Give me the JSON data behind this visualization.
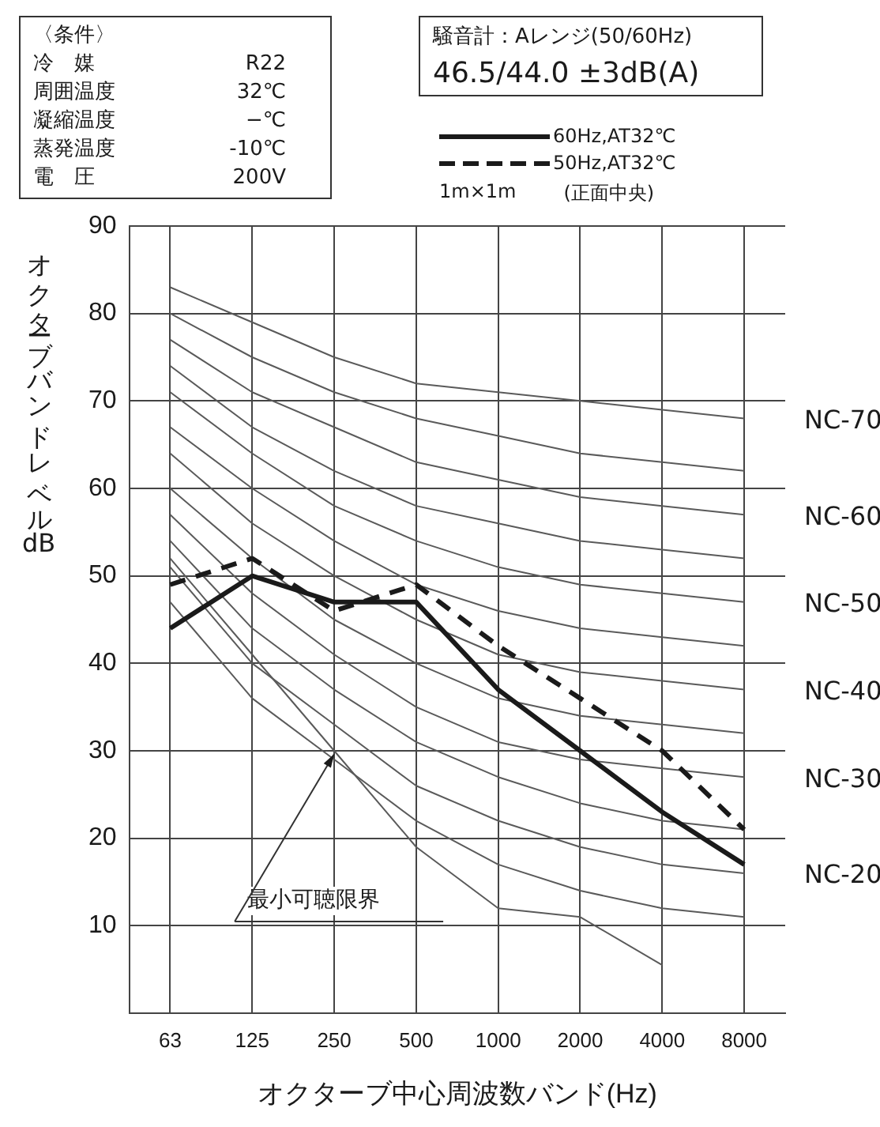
{
  "chart_data": {
    "type": "line",
    "xlabel": "オクターブ中心周波数バンド(Hz)",
    "ylabel": "オクターブバンドレベル dB",
    "categories": [
      "63",
      "125",
      "250",
      "500",
      "1000",
      "2000",
      "4000",
      "8000"
    ],
    "ylim": [
      0,
      90
    ],
    "yticks": [
      10,
      20,
      30,
      40,
      50,
      60,
      70,
      80,
      90
    ],
    "grid": true,
    "legend": "top right",
    "marker": "none",
    "series": [
      {
        "name": "60Hz,AT32℃",
        "color": "#1a1a1a",
        "line_style": "solid",
        "values": [
          44,
          50,
          47,
          47,
          37,
          30,
          23,
          17
        ]
      },
      {
        "name": "50Hz,AT32℃",
        "color": "#1a1a1a",
        "line_style": "dashed",
        "values": [
          49,
          52,
          46,
          49,
          42,
          36,
          30,
          21
        ]
      },
      {
        "color": "#5a5a5a",
        "values": [
          47,
          36,
          29,
          22,
          17,
          14,
          12,
          11
        ]
      },
      {
        "name": "NC-20",
        "color": "#5a5a5a",
        "values": [
          51,
          40,
          33,
          26,
          22,
          19,
          17,
          16
        ]
      },
      {
        "color": "#5a5a5a",
        "values": [
          54,
          44,
          37,
          31,
          27,
          24,
          22,
          21
        ]
      },
      {
        "name": "NC-30",
        "color": "#5a5a5a",
        "values": [
          57,
          48,
          41,
          35,
          31,
          29,
          28,
          27
        ]
      },
      {
        "color": "#5a5a5a",
        "values": [
          60,
          52,
          45,
          40,
          36,
          34,
          33,
          32
        ]
      },
      {
        "name": "NC-40",
        "color": "#5a5a5a",
        "values": [
          64,
          56,
          50,
          45,
          41,
          39,
          38,
          37
        ]
      },
      {
        "color": "#5a5a5a",
        "values": [
          67,
          60,
          54,
          49,
          46,
          44,
          43,
          42
        ]
      },
      {
        "name": "NC-50",
        "color": "#5a5a5a",
        "values": [
          71,
          64,
          58,
          54,
          51,
          49,
          48,
          47
        ]
      },
      {
        "color": "#5a5a5a",
        "values": [
          74,
          67,
          62,
          58,
          56,
          54,
          53,
          52
        ]
      },
      {
        "name": "NC-60",
        "color": "#5a5a5a",
        "values": [
          77,
          71,
          67,
          63,
          61,
          59,
          58,
          57
        ]
      },
      {
        "color": "#5a5a5a",
        "values": [
          80,
          75,
          71,
          68,
          66,
          64,
          63,
          62
        ]
      },
      {
        "name": "NC-70",
        "color": "#5a5a5a",
        "values": [
          83,
          79,
          75,
          72,
          71,
          70,
          69,
          68
        ]
      },
      {
        "color": "#5a5a5a",
        "values": [
          52,
          41,
          30,
          19,
          12,
          11,
          5.5,
          null
        ]
      }
    ],
    "annotations": [
      "〈条件〉",
      "冷　媒\tR22",
      "周囲温度\t32℃",
      "凝縮温度\t−℃",
      "蒸発温度\t-10℃",
      "電　圧\t200V",
      "騒音計：Aレンジ(50/60Hz)",
      "46.5/44.0 ±3dB(A)",
      "1m×1m\t(正面中央)",
      {
        "text": "最小可聴限界",
        "x": "250",
        "y": 30
      }
    ]
  }
}
